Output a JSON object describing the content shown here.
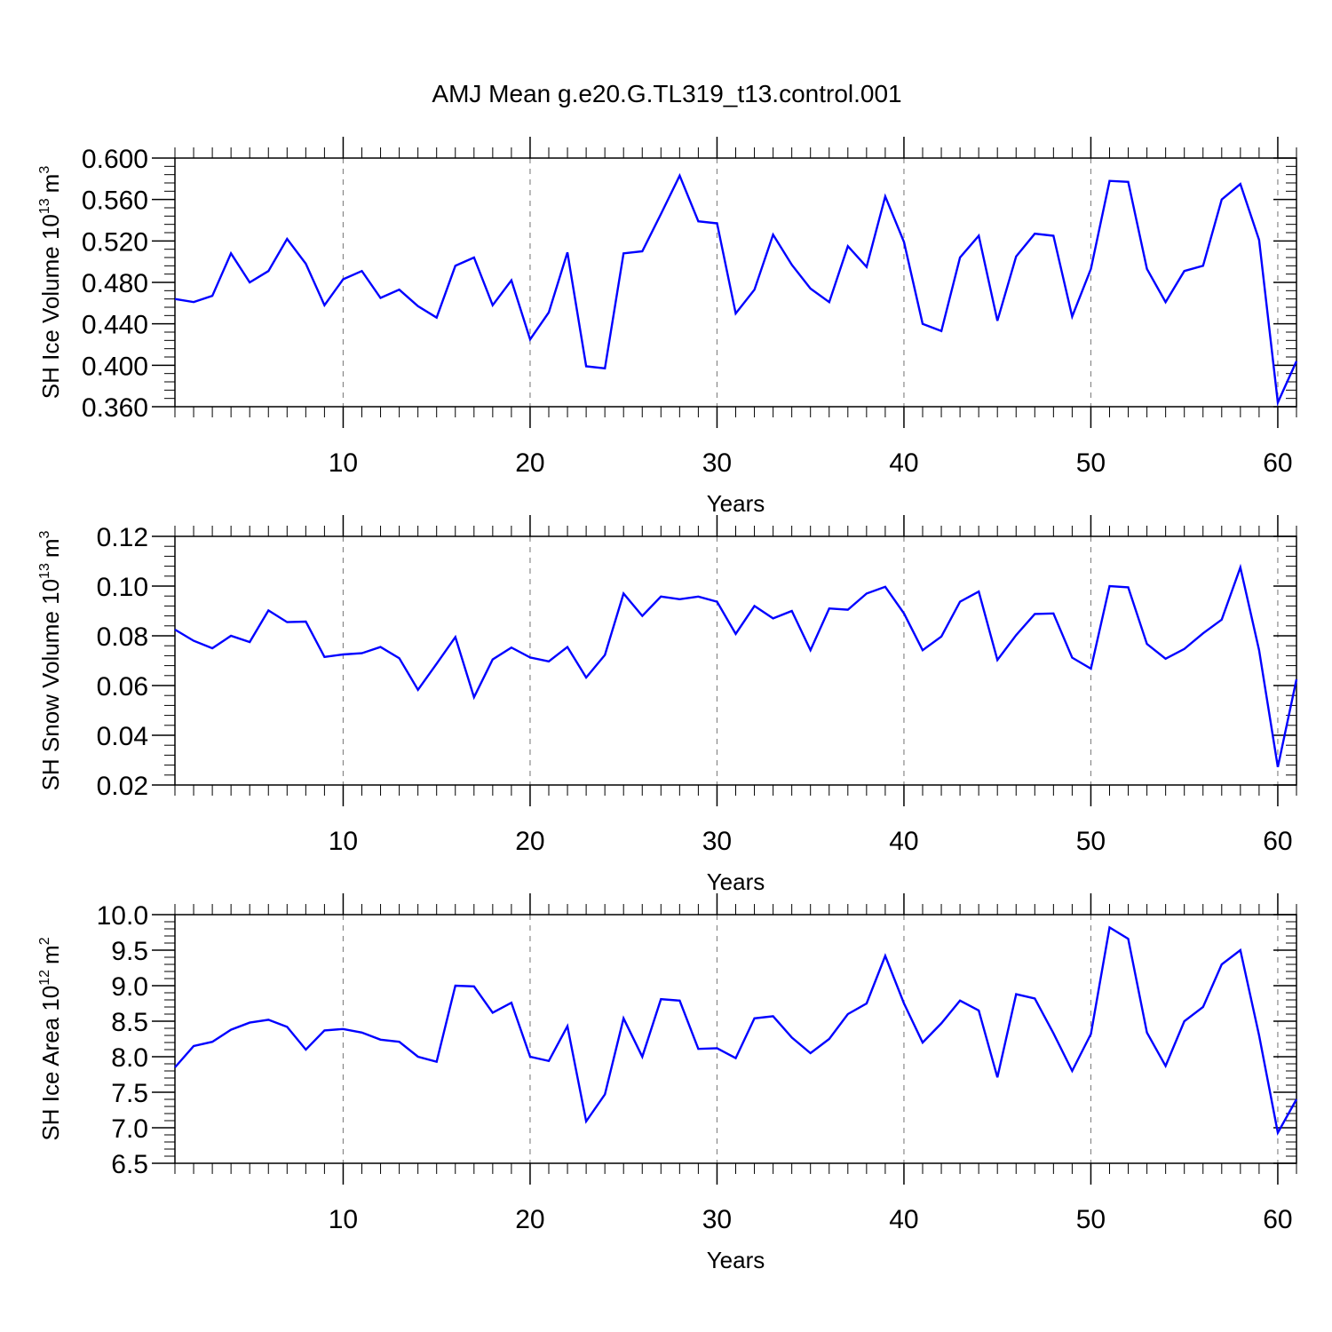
{
  "title": "AMJ Mean g.e20.G.TL319_t13.control.001",
  "colors": {
    "line": "#0000ff",
    "axis": "#000000",
    "grid": "#888888"
  },
  "chart_data": [
    {
      "type": "line",
      "series_name": "SH Ice Volume",
      "ylabel": {
        "text": "SH Ice Volume 10",
        "sup": "13",
        "unit": "m",
        "unit_sup": "3"
      },
      "xlabel": "Years",
      "xlim": [
        1,
        61
      ],
      "ylim": [
        0.36,
        0.6
      ],
      "yticks": [
        0.36,
        0.4,
        0.44,
        0.48,
        0.52,
        0.56,
        0.6
      ],
      "ytick_labels": [
        "0.360",
        "0.400",
        "0.440",
        "0.480",
        "0.520",
        "0.560",
        "0.600"
      ],
      "xticks": [
        10,
        20,
        30,
        40,
        50,
        60
      ],
      "xtick_labels": [
        "10",
        "20",
        "30",
        "40",
        "50",
        "60"
      ],
      "x": [
        1,
        2,
        3,
        4,
        5,
        6,
        7,
        8,
        9,
        10,
        11,
        12,
        13,
        14,
        15,
        16,
        17,
        18,
        19,
        20,
        21,
        22,
        23,
        24,
        25,
        26,
        27,
        28,
        29,
        30,
        31,
        32,
        33,
        34,
        35,
        36,
        37,
        38,
        39,
        40,
        41,
        42,
        43,
        44,
        45,
        46,
        47,
        48,
        49,
        50,
        51,
        52,
        53,
        54,
        55,
        56,
        57,
        58,
        59,
        60,
        61
      ],
      "values": [
        0.464,
        0.461,
        0.467,
        0.508,
        0.48,
        0.491,
        0.522,
        0.498,
        0.458,
        0.483,
        0.491,
        0.465,
        0.473,
        0.457,
        0.446,
        0.496,
        0.504,
        0.458,
        0.482,
        0.425,
        0.451,
        0.509,
        0.399,
        0.397,
        0.508,
        0.51,
        0.546,
        0.583,
        0.539,
        0.537,
        0.45,
        0.473,
        0.526,
        0.497,
        0.474,
        0.461,
        0.515,
        0.495,
        0.563,
        0.519,
        0.44,
        0.433,
        0.504,
        0.525,
        0.443,
        0.505,
        0.527,
        0.525,
        0.447,
        0.493,
        0.578,
        0.577,
        0.493,
        0.461,
        0.491,
        0.496,
        0.56,
        0.575,
        0.521,
        0.364,
        0.404
      ]
    },
    {
      "type": "line",
      "series_name": "SH Snow Volume",
      "ylabel": {
        "text": "SH Snow Volume 10",
        "sup": "13",
        "unit": "m",
        "unit_sup": "3"
      },
      "xlabel": "Years",
      "xlim": [
        1,
        61
      ],
      "ylim": [
        0.02,
        0.12
      ],
      "yticks": [
        0.02,
        0.04,
        0.06,
        0.08,
        0.1,
        0.12
      ],
      "ytick_labels": [
        "0.02",
        "0.04",
        "0.06",
        "0.08",
        "0.10",
        "0.12"
      ],
      "xticks": [
        10,
        20,
        30,
        40,
        50,
        60
      ],
      "xtick_labels": [
        "10",
        "20",
        "30",
        "40",
        "50",
        "60"
      ],
      "x": [
        1,
        2,
        3,
        4,
        5,
        6,
        7,
        8,
        9,
        10,
        11,
        12,
        13,
        14,
        15,
        16,
        17,
        18,
        19,
        20,
        21,
        22,
        23,
        24,
        25,
        26,
        27,
        28,
        29,
        30,
        31,
        32,
        33,
        34,
        35,
        36,
        37,
        38,
        39,
        40,
        41,
        42,
        43,
        44,
        45,
        46,
        47,
        48,
        49,
        50,
        51,
        52,
        53,
        54,
        55,
        56,
        57,
        58,
        59,
        60,
        61
      ],
      "values": [
        0.0825,
        0.078,
        0.075,
        0.08,
        0.0775,
        0.0902,
        0.0855,
        0.0857,
        0.0715,
        0.0725,
        0.073,
        0.0755,
        0.071,
        0.0583,
        0.0688,
        0.0795,
        0.0553,
        0.0705,
        0.0753,
        0.0713,
        0.0697,
        0.0755,
        0.0632,
        0.0723,
        0.097,
        0.088,
        0.0958,
        0.0947,
        0.0958,
        0.0937,
        0.0808,
        0.092,
        0.087,
        0.09,
        0.0742,
        0.091,
        0.0905,
        0.097,
        0.0997,
        0.089,
        0.0742,
        0.0797,
        0.0937,
        0.0978,
        0.0703,
        0.0803,
        0.0888,
        0.089,
        0.0712,
        0.0668,
        0.1,
        0.0995,
        0.0767,
        0.0708,
        0.0747,
        0.081,
        0.0865,
        0.1075,
        0.0742,
        0.0272,
        0.0625
      ]
    },
    {
      "type": "line",
      "series_name": "SH Ice Area",
      "ylabel": {
        "text": "SH Ice Area 10",
        "sup": "12",
        "unit": "m",
        "unit_sup": "2"
      },
      "xlabel": "Years",
      "xlim": [
        1,
        61
      ],
      "ylim": [
        6.5,
        10.0
      ],
      "yticks": [
        6.5,
        7.0,
        7.5,
        8.0,
        8.5,
        9.0,
        9.5,
        10.0
      ],
      "ytick_labels": [
        "6.5",
        "7.0",
        "7.5",
        "8.0",
        "8.5",
        "9.0",
        "9.5",
        "10.0"
      ],
      "xticks": [
        10,
        20,
        30,
        40,
        50,
        60
      ],
      "xtick_labels": [
        "10",
        "20",
        "30",
        "40",
        "50",
        "60"
      ],
      "x": [
        1,
        2,
        3,
        4,
        5,
        6,
        7,
        8,
        9,
        10,
        11,
        12,
        13,
        14,
        15,
        16,
        17,
        18,
        19,
        20,
        21,
        22,
        23,
        24,
        25,
        26,
        27,
        28,
        29,
        30,
        31,
        32,
        33,
        34,
        35,
        36,
        37,
        38,
        39,
        40,
        41,
        42,
        43,
        44,
        45,
        46,
        47,
        48,
        49,
        50,
        51,
        52,
        53,
        54,
        55,
        56,
        57,
        58,
        59,
        60,
        61
      ],
      "values": [
        7.85,
        8.15,
        8.21,
        8.38,
        8.48,
        8.52,
        8.42,
        8.1,
        8.37,
        8.39,
        8.34,
        8.24,
        8.21,
        8.0,
        7.93,
        9.0,
        8.99,
        8.62,
        8.76,
        8.0,
        7.94,
        8.43,
        7.09,
        7.47,
        8.54,
        8.0,
        8.81,
        8.79,
        8.11,
        8.12,
        7.98,
        8.54,
        8.57,
        8.27,
        8.05,
        8.25,
        8.6,
        8.75,
        9.42,
        8.75,
        8.2,
        8.47,
        8.79,
        8.65,
        7.71,
        8.88,
        8.82,
        8.33,
        7.8,
        8.32,
        9.82,
        9.66,
        8.34,
        7.87,
        8.5,
        8.7,
        9.3,
        9.5,
        8.3,
        6.93,
        7.4
      ]
    }
  ]
}
